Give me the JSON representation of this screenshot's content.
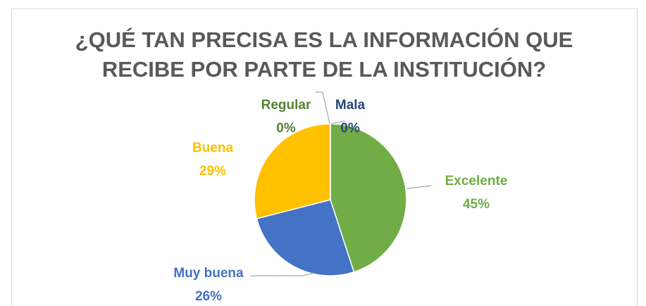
{
  "chart_data": {
    "type": "pie",
    "title": "¿QUÉ TAN PRECISA ES LA INFORMACIÓN QUE RECIBE POR PARTE DE LA INSTITUCIÓN?",
    "categories": [
      "Excelente",
      "Muy buena",
      "Buena",
      "Regular",
      "Mala"
    ],
    "values": [
      45,
      26,
      29,
      0,
      0
    ],
    "value_labels": [
      "45%",
      "26%",
      "29%",
      "0%",
      "0%"
    ],
    "colors": [
      "#70ad47",
      "#4472c4",
      "#ffc000",
      "#548235",
      "#264478"
    ]
  }
}
